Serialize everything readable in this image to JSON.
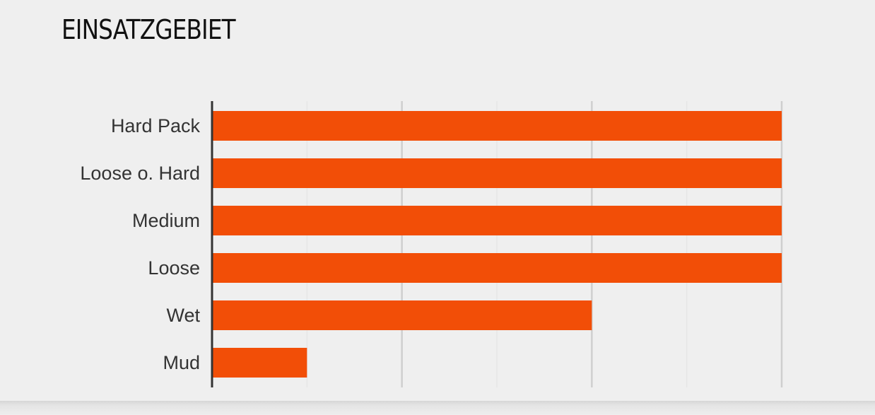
{
  "chart_data": {
    "type": "bar",
    "orientation": "horizontal",
    "title": "EINSATZGEBIET",
    "categories": [
      "Hard Pack",
      "Loose o. Hard",
      "Medium",
      "Loose",
      "Wet",
      "Mud"
    ],
    "values": [
      3,
      3,
      3,
      3,
      2,
      0.5
    ],
    "xlim": [
      0,
      3
    ],
    "xticks": [
      0,
      1,
      2,
      3
    ],
    "grid": true,
    "xlabel": "",
    "ylabel": "",
    "bar_color": "#f24e07"
  }
}
